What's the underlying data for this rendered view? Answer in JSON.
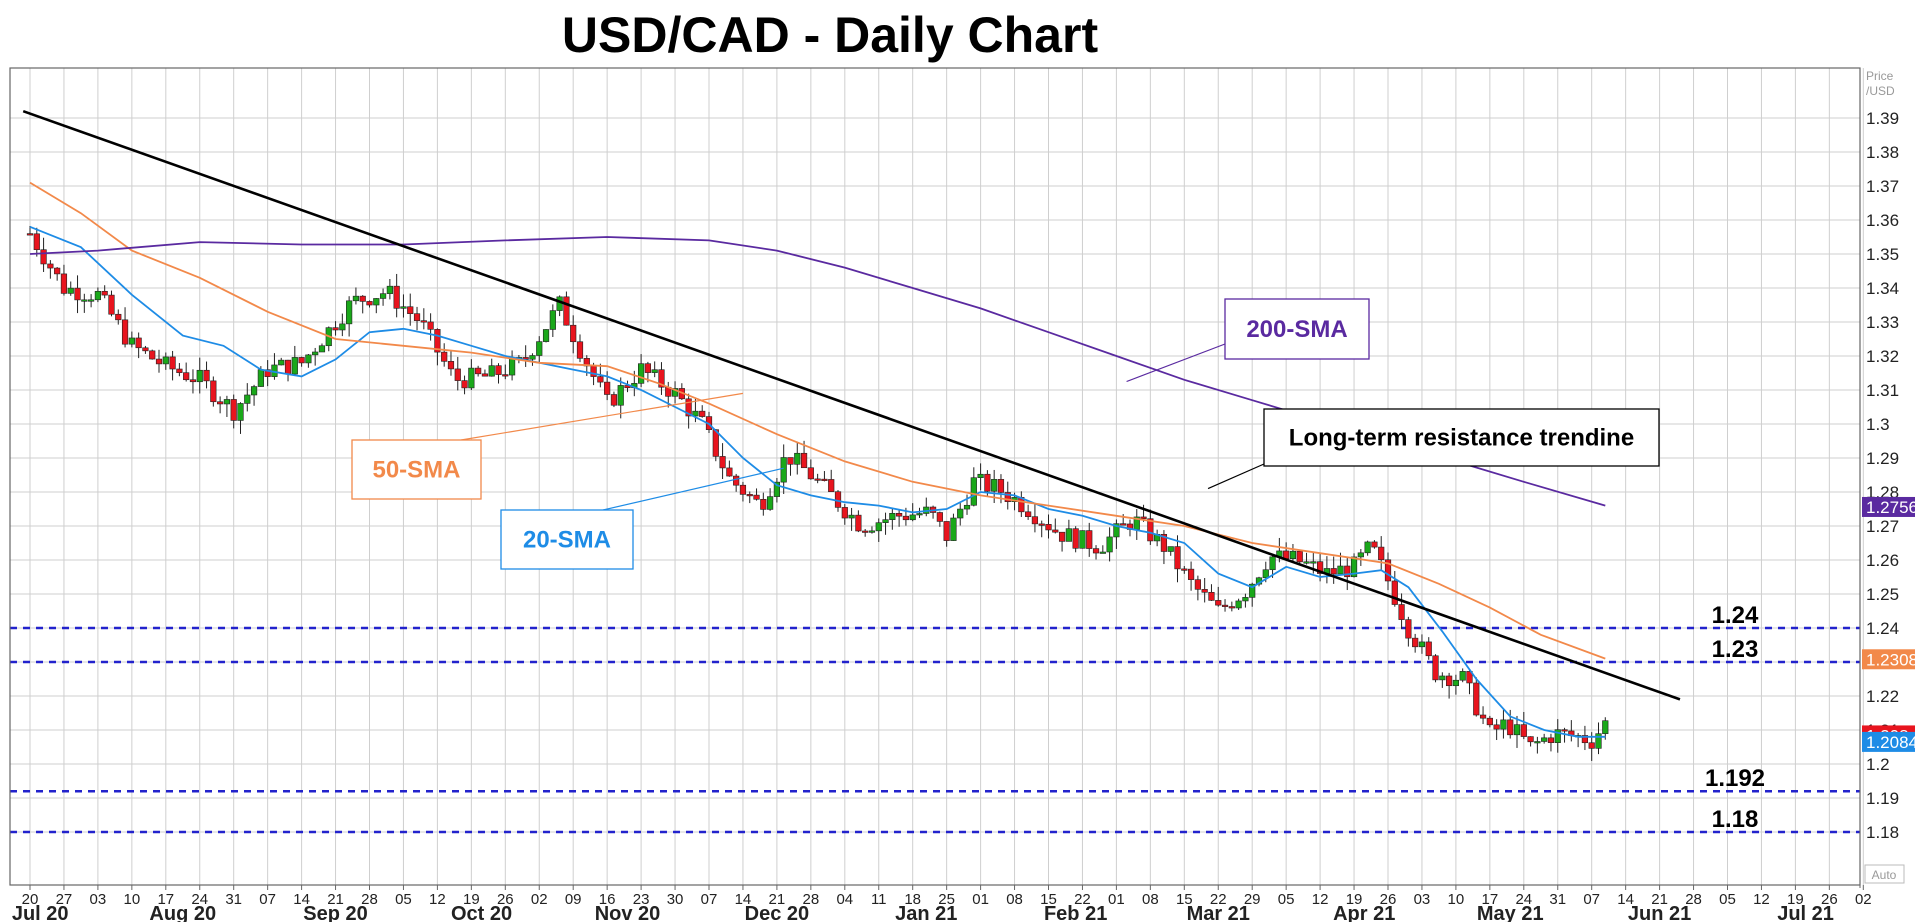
{
  "chart_data": {
    "type": "candlestick",
    "title": "USD/CAD - Daily Chart",
    "axis_label": [
      "Price",
      "/USD"
    ],
    "auto_label": "Auto",
    "ylim": [
      1.17,
      1.4
    ],
    "y_ticks": [
      {
        "label": "1.39",
        "value": 1.39
      },
      {
        "label": "1.38",
        "value": 1.38
      },
      {
        "label": "1.37",
        "value": 1.37
      },
      {
        "label": "1.36",
        "value": 1.36
      },
      {
        "label": "1.35",
        "value": 1.35
      },
      {
        "label": "1.34",
        "value": 1.34
      },
      {
        "label": "1.33",
        "value": 1.33
      },
      {
        "label": "1.32",
        "value": 1.32
      },
      {
        "label": "1.31",
        "value": 1.31
      },
      {
        "label": "1.3",
        "value": 1.3
      },
      {
        "label": "1.29",
        "value": 1.29
      },
      {
        "label": "1.28",
        "value": 1.28
      },
      {
        "label": "1.27",
        "value": 1.27
      },
      {
        "label": "1.26",
        "value": 1.26
      },
      {
        "label": "1.25",
        "value": 1.25
      },
      {
        "label": "1.24",
        "value": 1.24
      },
      {
        "label": "1.23",
        "value": 1.23
      },
      {
        "label": "1.22",
        "value": 1.22
      },
      {
        "label": "1.21",
        "value": 1.21
      },
      {
        "label": "1.2",
        "value": 1.2
      },
      {
        "label": "1.19",
        "value": 1.19
      },
      {
        "label": "1.18",
        "value": 1.18
      }
    ],
    "x_day_ticks": [
      "20",
      "27",
      "03",
      "10",
      "17",
      "24",
      "31",
      "07",
      "14",
      "21",
      "28",
      "05",
      "12",
      "19",
      "26",
      "02",
      "09",
      "16",
      "23",
      "30",
      "07",
      "14",
      "21",
      "28",
      "04",
      "11",
      "18",
      "25",
      "01",
      "08",
      "15",
      "22",
      "01",
      "08",
      "15",
      "22",
      "29",
      "05",
      "12",
      "19",
      "26",
      "03",
      "10",
      "17",
      "24",
      "31",
      "07",
      "14",
      "21",
      "28",
      "05",
      "12",
      "19",
      "26",
      "02"
    ],
    "month_labels": [
      {
        "label": "Jul 20",
        "week": 0.3
      },
      {
        "label": "Aug 20",
        "week": 4.5
      },
      {
        "label": "Sep 20",
        "week": 9.0
      },
      {
        "label": "Oct 20",
        "week": 13.3
      },
      {
        "label": "Nov 20",
        "week": 17.6
      },
      {
        "label": "Dec 20",
        "week": 22.0
      },
      {
        "label": "Jan 21",
        "week": 26.4
      },
      {
        "label": "Feb 21",
        "week": 30.8
      },
      {
        "label": "Mar 21",
        "week": 35.0
      },
      {
        "label": "Apr 21",
        "week": 39.3
      },
      {
        "label": "May 21",
        "week": 43.6
      },
      {
        "label": "Jun 21",
        "week": 48.0
      },
      {
        "label": "Jul 21",
        "week": 52.3
      }
    ],
    "price_path": [
      [
        0.0,
        1.356
      ],
      [
        1.0,
        1.34
      ],
      [
        2.0,
        1.338
      ],
      [
        3.0,
        1.323
      ],
      [
        4.0,
        1.317
      ],
      [
        5.0,
        1.313
      ],
      [
        6.0,
        1.304
      ],
      [
        7.0,
        1.316
      ],
      [
        8.0,
        1.318
      ],
      [
        9.5,
        1.336
      ],
      [
        10.5,
        1.339
      ],
      [
        11.5,
        1.33
      ],
      [
        12.5,
        1.313
      ],
      [
        13.5,
        1.314
      ],
      [
        14.5,
        1.318
      ],
      [
        15.6,
        1.335
      ],
      [
        16.3,
        1.32
      ],
      [
        17.0,
        1.306
      ],
      [
        18.0,
        1.316
      ],
      [
        19.0,
        1.309
      ],
      [
        19.8,
        1.3
      ],
      [
        20.6,
        1.284
      ],
      [
        21.5,
        1.276
      ],
      [
        22.3,
        1.291
      ],
      [
        23.0,
        1.285
      ],
      [
        24.0,
        1.275
      ],
      [
        24.5,
        1.27
      ],
      [
        25.5,
        1.273
      ],
      [
        26.5,
        1.274
      ],
      [
        27.0,
        1.267
      ],
      [
        27.8,
        1.283
      ],
      [
        28.5,
        1.281
      ],
      [
        29.3,
        1.276
      ],
      [
        30.3,
        1.268
      ],
      [
        31.5,
        1.264
      ],
      [
        32.5,
        1.272
      ],
      [
        33.4,
        1.264
      ],
      [
        34.2,
        1.253
      ],
      [
        35.0,
        1.245
      ],
      [
        35.8,
        1.251
      ],
      [
        36.5,
        1.261
      ],
      [
        37.3,
        1.26
      ],
      [
        38.2,
        1.256
      ],
      [
        39.0,
        1.258
      ],
      [
        39.5,
        1.264
      ],
      [
        40.0,
        1.254
      ],
      [
        40.6,
        1.24
      ],
      [
        41.4,
        1.227
      ],
      [
        42.2,
        1.225
      ],
      [
        43.0,
        1.209
      ],
      [
        43.5,
        1.212
      ],
      [
        44.2,
        1.205
      ],
      [
        44.9,
        1.209
      ],
      [
        45.6,
        1.208
      ],
      [
        46.0,
        1.207
      ],
      [
        46.4,
        1.212
      ]
    ],
    "series": [
      {
        "name": "20-SMA",
        "color": "#1e8ce6",
        "points": [
          [
            0.0,
            1.358
          ],
          [
            1.5,
            1.352
          ],
          [
            3.0,
            1.338
          ],
          [
            4.5,
            1.326
          ],
          [
            5.7,
            1.323
          ],
          [
            6.8,
            1.316
          ],
          [
            8.0,
            1.314
          ],
          [
            9.0,
            1.319
          ],
          [
            10.0,
            1.327
          ],
          [
            11.0,
            1.328
          ],
          [
            12.0,
            1.326
          ],
          [
            13.0,
            1.323
          ],
          [
            14.0,
            1.32
          ],
          [
            15.0,
            1.318
          ],
          [
            16.0,
            1.316
          ],
          [
            17.0,
            1.314
          ],
          [
            18.0,
            1.31
          ],
          [
            19.0,
            1.305
          ],
          [
            20.0,
            1.3
          ],
          [
            21.0,
            1.29
          ],
          [
            22.0,
            1.282
          ],
          [
            23.0,
            1.279
          ],
          [
            24.0,
            1.277
          ],
          [
            25.0,
            1.276
          ],
          [
            26.0,
            1.274
          ],
          [
            27.0,
            1.275
          ],
          [
            28.0,
            1.28
          ],
          [
            29.0,
            1.279
          ],
          [
            30.0,
            1.275
          ],
          [
            31.0,
            1.273
          ],
          [
            32.0,
            1.27
          ],
          [
            33.0,
            1.268
          ],
          [
            34.0,
            1.265
          ],
          [
            35.0,
            1.256
          ],
          [
            36.0,
            1.252
          ],
          [
            37.0,
            1.258
          ],
          [
            38.0,
            1.255
          ],
          [
            39.0,
            1.256
          ],
          [
            39.8,
            1.257
          ],
          [
            40.6,
            1.252
          ],
          [
            41.6,
            1.239
          ],
          [
            42.6,
            1.225
          ],
          [
            43.6,
            1.214
          ],
          [
            44.6,
            1.21
          ],
          [
            45.6,
            1.208
          ],
          [
            46.4,
            1.208
          ]
        ]
      },
      {
        "name": "50-SMA",
        "color": "#f2894a",
        "points": [
          [
            0.0,
            1.371
          ],
          [
            1.5,
            1.362
          ],
          [
            3.0,
            1.351
          ],
          [
            5.0,
            1.343
          ],
          [
            7.0,
            1.333
          ],
          [
            9.0,
            1.325
          ],
          [
            11.0,
            1.323
          ],
          [
            13.0,
            1.321
          ],
          [
            15.0,
            1.318
          ],
          [
            17.0,
            1.317
          ],
          [
            18.5,
            1.312
          ],
          [
            20.0,
            1.306
          ],
          [
            22.0,
            1.297
          ],
          [
            24.0,
            1.289
          ],
          [
            26.0,
            1.283
          ],
          [
            28.0,
            1.279
          ],
          [
            30.0,
            1.276
          ],
          [
            32.0,
            1.273
          ],
          [
            34.0,
            1.27
          ],
          [
            36.0,
            1.265
          ],
          [
            38.0,
            1.262
          ],
          [
            40.0,
            1.259
          ],
          [
            41.5,
            1.253
          ],
          [
            43.0,
            1.246
          ],
          [
            44.5,
            1.238
          ],
          [
            46.4,
            1.231
          ]
        ]
      },
      {
        "name": "200-SMA",
        "color": "#5a2aa0",
        "points": [
          [
            0.0,
            1.35
          ],
          [
            2.0,
            1.351
          ],
          [
            5.0,
            1.3535
          ],
          [
            8.0,
            1.3528
          ],
          [
            11.0,
            1.3528
          ],
          [
            14.0,
            1.354
          ],
          [
            17.0,
            1.355
          ],
          [
            20.0,
            1.354
          ],
          [
            22.0,
            1.351
          ],
          [
            24.0,
            1.346
          ],
          [
            26.0,
            1.34
          ],
          [
            28.0,
            1.334
          ],
          [
            30.0,
            1.327
          ],
          [
            32.0,
            1.32
          ],
          [
            34.0,
            1.313
          ],
          [
            36.0,
            1.307
          ],
          [
            38.0,
            1.301
          ],
          [
            40.0,
            1.295
          ],
          [
            42.0,
            1.289
          ],
          [
            44.0,
            1.283
          ],
          [
            46.4,
            1.276
          ]
        ]
      }
    ],
    "trendline": {
      "name": "Long-term resistance trendine",
      "color": "#000000",
      "start": [
        -0.2,
        1.392
      ],
      "end": [
        48.6,
        1.219
      ]
    },
    "levels": [
      {
        "label": "1.24",
        "value": 1.24,
        "color": "#2222cc"
      },
      {
        "label": "1.23",
        "value": 1.23,
        "color": "#2222cc"
      },
      {
        "label": "1.192",
        "value": 1.192,
        "color": "#2222cc"
      },
      {
        "label": "1.18",
        "value": 1.18,
        "color": "#2222cc"
      }
    ],
    "price_tags": [
      {
        "label": "1.2756",
        "value": 1.2756,
        "color": "#5a2aa0"
      },
      {
        "label": "1.2308",
        "value": 1.2308,
        "color": "#f2894a"
      },
      {
        "label": "1.208",
        "value": 1.2084,
        "color": "#e8141e"
      },
      {
        "label": "1.2084",
        "value": 1.2065,
        "color": "#1e8ce6"
      }
    ],
    "annotations": [
      {
        "label": "200-SMA",
        "color": "#5a2aa0",
        "target_week": 32.3,
        "target_value": 1.3125
      },
      {
        "label": "Long-term resistance trendine",
        "color": "#000000",
        "target_week": 34.7,
        "target_value": 1.281
      },
      {
        "label": "50-SMA",
        "color": "#f2894a",
        "target_week": 21.0,
        "target_value": 1.309
      },
      {
        "label": "20-SMA",
        "color": "#1e8ce6",
        "target_week": 22.2,
        "target_value": 1.287
      }
    ],
    "candle_colors": {
      "up": "#1aa81a",
      "down": "#e8141e"
    },
    "grid": true
  }
}
